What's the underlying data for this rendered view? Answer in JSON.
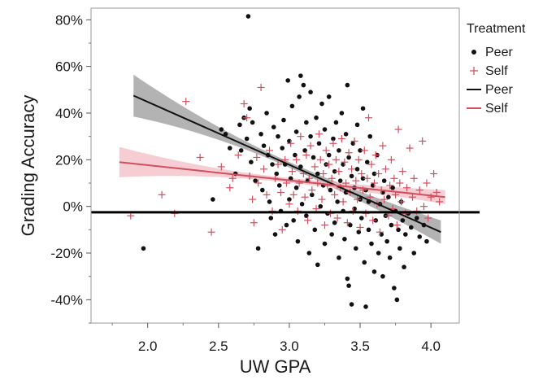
{
  "chart_data": {
    "type": "scatter",
    "xlabel": "UW GPA",
    "ylabel": "Grading Accuracy",
    "xlim": [
      1.6,
      4.2
    ],
    "ylim": [
      -0.5,
      0.85
    ],
    "x_ticks": [
      "2.0",
      "2.5",
      "3.0",
      "3.5",
      "4.0"
    ],
    "y_ticks": [
      "80%",
      "60%",
      "40%",
      "20%",
      "0%",
      "-20%",
      "-40%"
    ],
    "grid": false,
    "legend": {
      "title": "Treatment",
      "position": "right",
      "items": [
        {
          "label": "Peer",
          "symbol": "dot",
          "color": "#111111"
        },
        {
          "label": "Self",
          "symbol": "plus",
          "color": "#d0505f"
        },
        {
          "label": "Peer",
          "symbol": "line",
          "color": "#111111"
        },
        {
          "label": "Self",
          "symbol": "line",
          "color": "#d0505f"
        }
      ]
    },
    "reference_line": {
      "y": -0.025,
      "color": "#000000"
    },
    "fits": [
      {
        "name": "Peer",
        "color": "#111111",
        "band_color": "#9a9a9a",
        "x": [
          1.9,
          4.07
        ],
        "y": [
          0.475,
          -0.11
        ],
        "band_halfwidth_ends": [
          0.09,
          0.05
        ],
        "band_halfwidth_center": 0.012
      },
      {
        "name": "Self",
        "color": "#d0505f",
        "band_color": "#f2bcc4",
        "x": [
          1.8,
          4.1
        ],
        "y": [
          0.19,
          0.04
        ],
        "band_halfwidth_ends": [
          0.065,
          0.03
        ],
        "band_halfwidth_center": 0.01
      }
    ],
    "series": [
      {
        "name": "Peer",
        "marker": "dot",
        "color": "#111111",
        "points": [
          [
            1.97,
            -0.18
          ],
          [
            2.46,
            0.03
          ],
          [
            2.52,
            0.33
          ],
          [
            2.55,
            0.31
          ],
          [
            2.58,
            0.25
          ],
          [
            2.62,
            0.14
          ],
          [
            2.65,
            0.35
          ],
          [
            2.66,
            0.24
          ],
          [
            2.68,
            0.38
          ],
          [
            2.7,
            0.29
          ],
          [
            2.71,
            0.815
          ],
          [
            2.72,
            0.42
          ],
          [
            2.73,
            0.19
          ],
          [
            2.74,
            0.36
          ],
          [
            2.76,
            0.11
          ],
          [
            2.78,
            -0.18
          ],
          [
            2.8,
            0.31
          ],
          [
            2.81,
            0.07
          ],
          [
            2.82,
            0.26
          ],
          [
            2.84,
            0.4
          ],
          [
            2.85,
            0.22
          ],
          [
            2.86,
            0.02
          ],
          [
            2.87,
            -0.05
          ],
          [
            2.88,
            0.18
          ],
          [
            2.89,
            0.34
          ],
          [
            2.9,
            -0.12
          ],
          [
            2.91,
            0.14
          ],
          [
            2.92,
            0.3
          ],
          [
            2.93,
            0.09
          ],
          [
            2.94,
            -0.02
          ],
          [
            2.95,
            0.25
          ],
          [
            2.96,
            0.37
          ],
          [
            2.97,
            0.18
          ],
          [
            2.98,
            -0.08
          ],
          [
            2.99,
            0.54
          ],
          [
            3.0,
            0.28
          ],
          [
            3.0,
            0.03
          ],
          [
            3.01,
            0.12
          ],
          [
            3.02,
            0.43
          ],
          [
            3.03,
            -0.06
          ],
          [
            3.04,
            0.22
          ],
          [
            3.05,
            0.32
          ],
          [
            3.05,
            0.08
          ],
          [
            3.06,
            -0.15
          ],
          [
            3.07,
            0.47
          ],
          [
            3.08,
            0.56
          ],
          [
            3.08,
            0.17
          ],
          [
            3.09,
            0.01
          ],
          [
            3.1,
            0.52
          ],
          [
            3.11,
            0.24
          ],
          [
            3.12,
            0.36
          ],
          [
            3.12,
            -0.04
          ],
          [
            3.13,
            0.11
          ],
          [
            3.14,
            -0.2
          ],
          [
            3.15,
            0.3
          ],
          [
            3.15,
            0.49
          ],
          [
            3.16,
            0.05
          ],
          [
            3.17,
            0.21
          ],
          [
            3.18,
            -0.1
          ],
          [
            3.19,
            0.38
          ],
          [
            3.2,
            0.14
          ],
          [
            3.2,
            -0.25
          ],
          [
            3.21,
            0.27
          ],
          [
            3.22,
            0.0
          ],
          [
            3.23,
            0.44
          ],
          [
            3.24,
            0.09
          ],
          [
            3.25,
            -0.16
          ],
          [
            3.25,
            0.33
          ],
          [
            3.26,
            0.18
          ],
          [
            3.27,
            -0.03
          ],
          [
            3.28,
            0.22
          ],
          [
            3.28,
            0.47
          ],
          [
            3.29,
            0.07
          ],
          [
            3.3,
            -0.12
          ],
          [
            3.31,
            0.29
          ],
          [
            3.32,
            0.15
          ],
          [
            3.32,
            -0.07
          ],
          [
            3.33,
            0.36
          ],
          [
            3.34,
            0.02
          ],
          [
            3.35,
            0.24
          ],
          [
            3.35,
            -0.22
          ],
          [
            3.36,
            0.11
          ],
          [
            3.37,
            0.4
          ],
          [
            3.38,
            -0.02
          ],
          [
            3.38,
            0.18
          ],
          [
            3.39,
            -0.14
          ],
          [
            3.4,
            0.31
          ],
          [
            3.4,
            0.06
          ],
          [
            3.41,
            -0.31
          ],
          [
            3.41,
            0.52
          ],
          [
            3.42,
            0.21
          ],
          [
            3.42,
            -0.34
          ],
          [
            3.43,
            -0.08
          ],
          [
            3.44,
            0.13
          ],
          [
            3.44,
            -0.42
          ],
          [
            3.45,
            0.27
          ],
          [
            3.46,
            -0.01
          ],
          [
            3.46,
            0.08
          ],
          [
            3.47,
            -0.18
          ],
          [
            3.48,
            0.35
          ],
          [
            3.48,
            0.16
          ],
          [
            3.49,
            -0.11
          ],
          [
            3.5,
            0.03
          ],
          [
            3.5,
            0.24
          ],
          [
            3.51,
            -0.05
          ],
          [
            3.52,
            0.42
          ],
          [
            3.52,
            0.12
          ],
          [
            3.53,
            -0.24
          ],
          [
            3.54,
            0.07
          ],
          [
            3.54,
            -0.43
          ],
          [
            3.55,
            0.19
          ],
          [
            3.56,
            -0.1
          ],
          [
            3.56,
            0.02
          ],
          [
            3.57,
            0.3
          ],
          [
            3.58,
            -0.16
          ],
          [
            3.59,
            0.09
          ],
          [
            3.6,
            -0.28
          ],
          [
            3.6,
            0.14
          ],
          [
            3.61,
            -0.06
          ],
          [
            3.62,
            0.22
          ],
          [
            3.63,
            -0.2
          ],
          [
            3.64,
            0.01
          ],
          [
            3.65,
            -0.12
          ],
          [
            3.66,
            0.06
          ],
          [
            3.66,
            -0.3
          ],
          [
            3.67,
            0.11
          ],
          [
            3.68,
            -0.04
          ],
          [
            3.69,
            -0.15
          ],
          [
            3.7,
            0.04
          ],
          [
            3.71,
            -0.22
          ],
          [
            3.72,
            -0.08
          ],
          [
            3.73,
            0.08
          ],
          [
            3.74,
            -0.35
          ],
          [
            3.75,
            -0.02
          ],
          [
            3.76,
            -0.4
          ],
          [
            3.77,
            -0.1
          ],
          [
            3.78,
            -0.18
          ],
          [
            3.79,
            0.02
          ],
          [
            3.8,
            -0.06
          ],
          [
            3.81,
            -0.26
          ],
          [
            3.82,
            -0.12
          ],
          [
            3.84,
            -0.03
          ],
          [
            3.86,
            -0.09
          ],
          [
            3.88,
            -0.2
          ],
          [
            3.9,
            -0.05
          ],
          [
            3.92,
            -0.13
          ],
          [
            3.95,
            -0.08
          ],
          [
            3.97,
            -0.15
          ]
        ]
      },
      {
        "name": "Self",
        "marker": "plus",
        "color": "#d0505f",
        "points": [
          [
            1.88,
            -0.04
          ],
          [
            2.1,
            0.05
          ],
          [
            2.19,
            -0.03
          ],
          [
            2.27,
            0.45
          ],
          [
            2.37,
            0.21
          ],
          [
            2.45,
            -0.11
          ],
          [
            2.52,
            0.17
          ],
          [
            2.58,
            0.08
          ],
          [
            2.6,
            0.12
          ],
          [
            2.64,
            0.22
          ],
          [
            2.68,
            0.44
          ],
          [
            2.7,
            0.38
          ],
          [
            2.72,
            0.13
          ],
          [
            2.74,
            0.03
          ],
          [
            2.75,
            -0.07
          ],
          [
            2.77,
            0.21
          ],
          [
            2.78,
            0.1
          ],
          [
            2.8,
            0.51
          ],
          [
            2.82,
            0.16
          ],
          [
            2.84,
            0.05
          ],
          [
            2.86,
            0.24
          ],
          [
            2.88,
            -0.02
          ],
          [
            2.9,
            0.12
          ],
          [
            2.92,
            0.18
          ],
          [
            2.94,
            0.06
          ],
          [
            2.95,
            -0.1
          ],
          [
            2.97,
            0.2
          ],
          [
            2.98,
            0.1
          ],
          [
            3.0,
            0.01
          ],
          [
            3.01,
            0.27
          ],
          [
            3.02,
            0.15
          ],
          [
            3.03,
            0.05
          ],
          [
            3.05,
            0.2
          ],
          [
            3.06,
            -0.02
          ],
          [
            3.07,
            0.1
          ],
          [
            3.08,
            0.3
          ],
          [
            3.1,
            0.14
          ],
          [
            3.11,
            0.04
          ],
          [
            3.12,
            0.22
          ],
          [
            3.13,
            -0.06
          ],
          [
            3.14,
            0.12
          ],
          [
            3.15,
            0.26
          ],
          [
            3.16,
            0.07
          ],
          [
            3.18,
            0.17
          ],
          [
            3.19,
            -0.01
          ],
          [
            3.2,
            0.1
          ],
          [
            3.21,
            0.31
          ],
          [
            3.22,
            0.2
          ],
          [
            3.23,
            0.03
          ],
          [
            3.24,
            0.14
          ],
          [
            3.25,
            -0.08
          ],
          [
            3.26,
            0.24
          ],
          [
            3.27,
            0.09
          ],
          [
            3.28,
            0.18
          ],
          [
            3.29,
            -0.03
          ],
          [
            3.3,
            0.12
          ],
          [
            3.31,
            0.27
          ],
          [
            3.32,
            0.05
          ],
          [
            3.33,
            0.2
          ],
          [
            3.34,
            -0.05
          ],
          [
            3.35,
            0.15
          ],
          [
            3.36,
            0.08
          ],
          [
            3.37,
            0.29
          ],
          [
            3.38,
            0.02
          ],
          [
            3.39,
            0.19
          ],
          [
            3.4,
            0.1
          ],
          [
            3.41,
            -0.07
          ],
          [
            3.42,
            0.23
          ],
          [
            3.43,
            0.06
          ],
          [
            3.44,
            0.16
          ],
          [
            3.45,
            -0.02
          ],
          [
            3.46,
            0.28
          ],
          [
            3.47,
            0.11
          ],
          [
            3.48,
            0.03
          ],
          [
            3.49,
            0.2
          ],
          [
            3.5,
            -0.09
          ],
          [
            3.51,
            0.14
          ],
          [
            3.52,
            0.07
          ],
          [
            3.53,
            0.24
          ],
          [
            3.54,
            -0.03
          ],
          [
            3.55,
            0.12
          ],
          [
            3.56,
            0.38
          ],
          [
            3.57,
            0.04
          ],
          [
            3.58,
            0.18
          ],
          [
            3.59,
            -0.06
          ],
          [
            3.6,
            0.1
          ],
          [
            3.61,
            0.22
          ],
          [
            3.62,
            0.01
          ],
          [
            3.63,
            0.14
          ],
          [
            3.64,
            -0.11
          ],
          [
            3.65,
            0.07
          ],
          [
            3.66,
            0.26
          ],
          [
            3.67,
            0.03
          ],
          [
            3.68,
            0.16
          ],
          [
            3.7,
            -0.04
          ],
          [
            3.71,
            0.09
          ],
          [
            3.72,
            0.2
          ],
          [
            3.73,
            -0.01
          ],
          [
            3.74,
            0.12
          ],
          [
            3.75,
            0.05
          ],
          [
            3.76,
            -0.08
          ],
          [
            3.77,
            0.33
          ],
          [
            3.78,
            0.1
          ],
          [
            3.79,
            0.02
          ],
          [
            3.8,
            0.15
          ],
          [
            3.82,
            -0.03
          ],
          [
            3.83,
            0.08
          ],
          [
            3.85,
            0.25
          ],
          [
            3.87,
            0.04
          ],
          [
            3.88,
            0.12
          ],
          [
            3.9,
            -0.02
          ],
          [
            3.92,
            0.07
          ],
          [
            3.94,
            0.28
          ],
          [
            3.95,
            0.0
          ],
          [
            3.97,
            0.1
          ],
          [
            3.98,
            -0.05
          ],
          [
            4.0,
            0.04
          ],
          [
            4.02,
            0.14
          ],
          [
            4.04,
            0.06
          ],
          [
            4.06,
            0.02
          ]
        ]
      }
    ]
  }
}
